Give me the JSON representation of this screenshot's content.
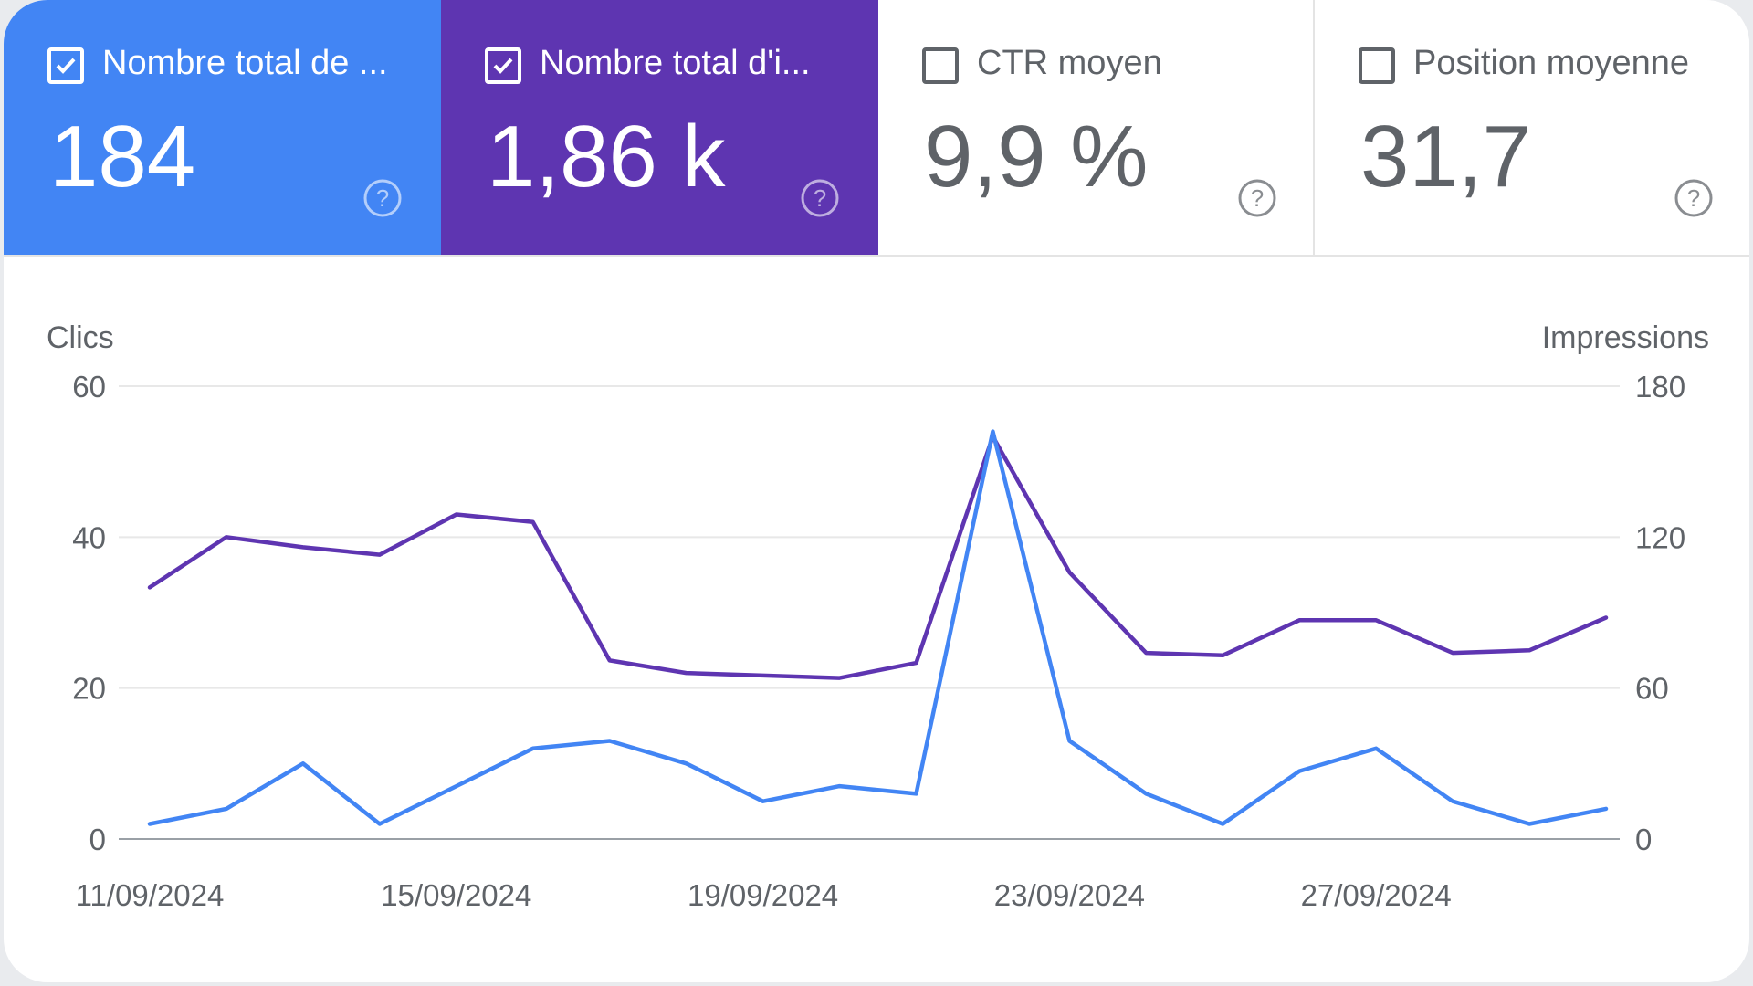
{
  "colors": {
    "clicks": "#4285f4",
    "impressions": "#5e35b1",
    "grid": "#e8e8e8",
    "axis_text": "#5f6368"
  },
  "metrics": [
    {
      "label": "Nombre total de ...",
      "value": "184",
      "selected": true,
      "color": "#4285f4",
      "help_icon": "help-circle-icon"
    },
    {
      "label": "Nombre total d'i...",
      "value": "1,86 k",
      "selected": true,
      "color": "#5e35b1",
      "help_icon": "help-circle-icon"
    },
    {
      "label": "CTR moyen",
      "value": "9,9 %",
      "selected": false,
      "help_icon": "help-circle-icon"
    },
    {
      "label": "Position moyenne",
      "value": "31,7",
      "selected": false,
      "help_icon": "help-circle-icon"
    }
  ],
  "chart": {
    "left_axis_title": "Clics",
    "right_axis_title": "Impressions"
  },
  "chart_data": {
    "type": "line",
    "x": [
      "11/09/2024",
      "12/09/2024",
      "13/09/2024",
      "14/09/2024",
      "15/09/2024",
      "16/09/2024",
      "17/09/2024",
      "18/09/2024",
      "19/09/2024",
      "20/09/2024",
      "21/09/2024",
      "22/09/2024",
      "23/09/2024",
      "24/09/2024",
      "25/09/2024",
      "26/09/2024",
      "27/09/2024",
      "28/09/2024",
      "29/09/2024",
      "30/09/2024"
    ],
    "x_tick_labels": [
      "11/09/2024",
      "15/09/2024",
      "19/09/2024",
      "23/09/2024",
      "27/09/2024"
    ],
    "series": [
      {
        "name": "Clics",
        "axis": "left",
        "color": "#4285f4",
        "values": [
          2,
          4,
          10,
          2,
          7,
          12,
          13,
          10,
          5,
          7,
          6,
          54,
          13,
          6,
          2,
          9,
          12,
          5,
          2,
          4
        ]
      },
      {
        "name": "Impressions",
        "axis": "right",
        "color": "#5e35b1",
        "values": [
          100,
          120,
          116,
          113,
          129,
          126,
          71,
          66,
          65,
          64,
          70,
          160,
          106,
          74,
          73,
          87,
          87,
          74,
          75,
          88
        ]
      }
    ],
    "y_left": {
      "label": "Clics",
      "ylim": [
        0,
        60
      ],
      "ticks": [
        0,
        20,
        40,
        60
      ]
    },
    "y_right": {
      "label": "Impressions",
      "ylim": [
        0,
        180
      ],
      "ticks": [
        0,
        60,
        120,
        180
      ]
    },
    "grid": true
  }
}
